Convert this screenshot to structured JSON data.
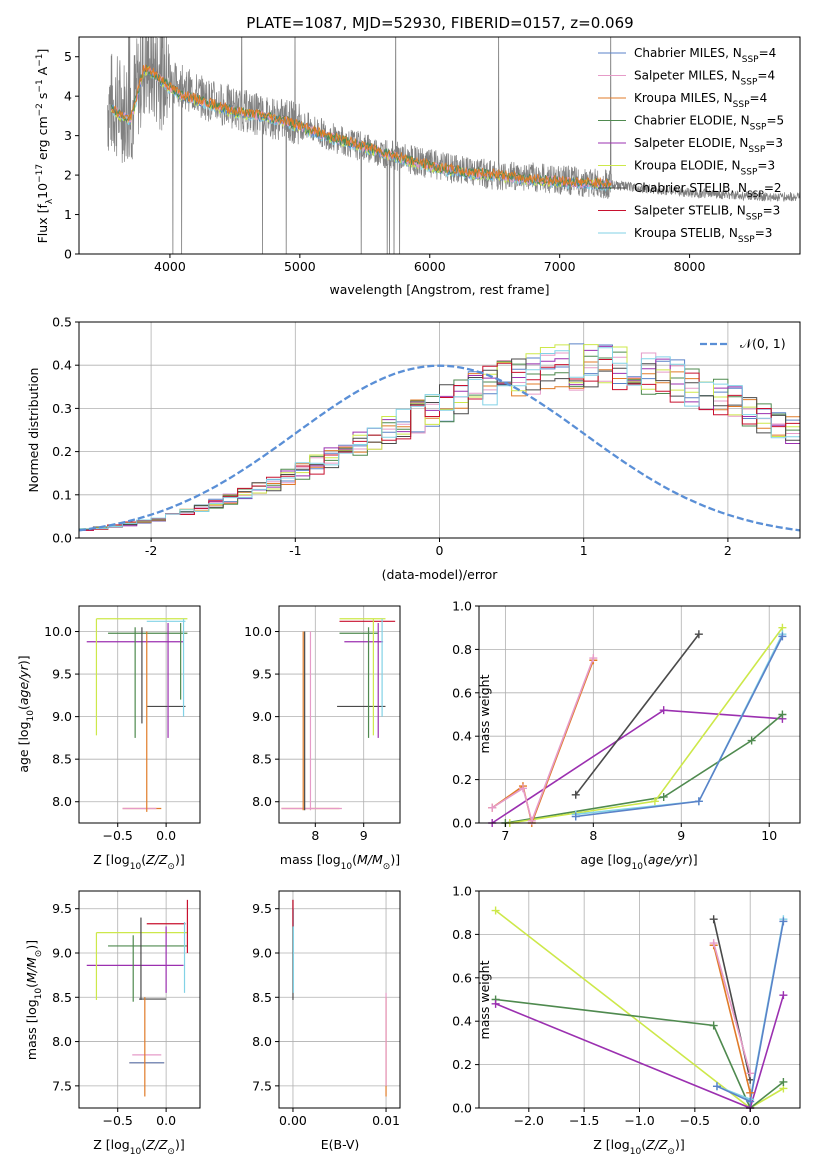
{
  "figure": {
    "title": "PLATE=1087, MJD=52930, FIBERID=0157, z=0.069"
  },
  "colors": {
    "chabrier_miles": "#5a82c8",
    "salpeter_miles": "#e69bc8",
    "kroupa_miles": "#e07b28",
    "chabrier_elodie": "#4f8a4f",
    "salpeter_elodie": "#9b30b0",
    "kroupa_elodie": "#cde84a",
    "chabrier_stelib": "#4a4a4a",
    "salpeter_stelib": "#c8102e",
    "kroupa_stelib": "#82d2e6",
    "data": "#808080",
    "gauss": "#5a8fd6"
  },
  "chart_data": [
    {
      "id": "spectrum",
      "type": "line",
      "title": "PLATE=1087, MJD=52930, FIBERID=0157, z=0.069",
      "xlabel": "wavelength [Angstrom, rest frame]",
      "ylabel": "Flux [f_λ 10^-17 erg cm^-2 s^-1 A^-1]",
      "xlim": [
        3300,
        8850
      ],
      "ylim": [
        0,
        5.5
      ],
      "xticks": [
        4000,
        5000,
        6000,
        7000,
        8000
      ],
      "yticks": [
        0,
        1,
        2,
        3,
        4,
        5
      ],
      "grid": false,
      "legend_position": "right",
      "legend": [
        {
          "key": "chabrier_miles",
          "label": "Chabrier MILES, N",
          "sub": "SSP",
          "suffix": "=4"
        },
        {
          "key": "salpeter_miles",
          "label": "Salpeter MILES, N",
          "sub": "SSP",
          "suffix": "=4"
        },
        {
          "key": "kroupa_miles",
          "label": "Kroupa MILES, N",
          "sub": "SSP",
          "suffix": "=4"
        },
        {
          "key": "chabrier_elodie",
          "label": "Chabrier ELODIE, N",
          "sub": "SSP",
          "suffix": "=5"
        },
        {
          "key": "salpeter_elodie",
          "label": "Salpeter ELODIE, N",
          "sub": "SSP",
          "suffix": "=3"
        },
        {
          "key": "kroupa_elodie",
          "label": "Kroupa ELODIE, N",
          "sub": "SSP",
          "suffix": "=3"
        },
        {
          "key": "chabrier_stelib",
          "label": "Chabrier STELIB, N",
          "sub": "SSP",
          "suffix": "=2"
        },
        {
          "key": "salpeter_stelib",
          "label": "Salpeter STELIB, N",
          "sub": "SSP",
          "suffix": "=3"
        },
        {
          "key": "kroupa_stelib",
          "label": "Kroupa STELIB, N",
          "sub": "SSP",
          "suffix": "=3"
        }
      ],
      "model_continuum": {
        "x": [
          3550,
          3620,
          3700,
          3800,
          3900,
          4000,
          4100,
          4200,
          4300,
          4500,
          4700,
          4900,
          5100,
          5300,
          5500,
          5700,
          5900,
          6100,
          6300,
          6500,
          6700,
          6900,
          7100,
          7300,
          7400
        ],
        "y": [
          3.7,
          3.5,
          3.4,
          4.7,
          4.5,
          4.2,
          4.0,
          3.9,
          3.8,
          3.6,
          3.5,
          3.35,
          3.1,
          2.9,
          2.7,
          2.5,
          2.3,
          2.15,
          2.05,
          2.0,
          1.9,
          1.85,
          1.8,
          1.78,
          1.75
        ]
      },
      "data_continuum": {
        "x": [
          3550,
          3700,
          3800,
          4000,
          4300,
          4600,
          5000,
          5300,
          5600,
          5900,
          6200,
          6500,
          6800,
          7100,
          7400,
          7700,
          8000,
          8300,
          8600,
          8850
        ],
        "y": [
          3.8,
          3.6,
          4.8,
          4.4,
          3.9,
          3.6,
          3.3,
          2.9,
          2.6,
          2.35,
          2.15,
          2.0,
          1.95,
          1.85,
          1.75,
          1.65,
          1.55,
          1.5,
          1.45,
          1.45
        ]
      }
    },
    {
      "id": "residuals",
      "type": "histogram",
      "xlabel": "(data-model)/error",
      "ylabel": "Normed distribution",
      "xlim": [
        -2.5,
        2.5
      ],
      "ylim": [
        0,
        0.5
      ],
      "xticks": [
        -2,
        -1,
        0,
        1,
        2
      ],
      "yticks": [
        0.0,
        0.1,
        0.2,
        0.3,
        0.4,
        0.5
      ],
      "grid": true,
      "legend_position": "top-right",
      "legend_label": "N(0,1)",
      "bin_width": 0.1,
      "bin_start": -2.5,
      "reference_values": [
        0.018,
        0.021,
        0.025,
        0.03,
        0.035,
        0.041,
        0.048,
        0.056,
        0.064,
        0.074,
        0.084,
        0.095,
        0.107,
        0.12,
        0.133,
        0.147,
        0.162,
        0.177,
        0.193,
        0.209,
        0.225,
        0.241,
        0.258,
        0.274,
        0.289,
        0.305,
        0.319,
        0.333,
        0.346,
        0.358,
        0.369,
        0.378,
        0.386,
        0.392,
        0.396,
        0.398,
        0.398,
        0.396,
        0.392,
        0.386,
        0.378,
        0.369,
        0.358,
        0.346,
        0.333,
        0.319,
        0.305,
        0.289,
        0.274,
        0.258,
        0.241
      ]
    },
    {
      "id": "age_vs_Z",
      "type": "scatter",
      "xlabel": "Z [log10(Z/Z_sun)]",
      "ylabel": "age [log10(age/yr)]",
      "xlim": [
        -0.9,
        0.35
      ],
      "ylim": [
        7.75,
        10.3
      ],
      "xticks": [
        -0.5,
        0.0
      ],
      "xticklabels": [
        "−0.5",
        "0.0"
      ],
      "yticks": [
        8.0,
        8.5,
        9.0,
        9.5,
        10.0
      ],
      "grid": true,
      "hlines": [
        {
          "key": "kroupa_elodie",
          "y": 10.15,
          "x1": -0.72,
          "x2": 0.22
        },
        {
          "key": "salpeter_elodie",
          "y": 9.88,
          "x1": -0.82,
          "x2": 0.18
        },
        {
          "key": "chabrier_elodie",
          "y": 9.98,
          "x1": -0.6,
          "x2": 0.22
        },
        {
          "key": "chabrier_stelib",
          "y": 9.12,
          "x1": -0.2,
          "x2": 0.2
        },
        {
          "key": "kroupa_stelib",
          "y": 10.12,
          "x1": -0.2,
          "x2": 0.2
        },
        {
          "key": "kroupa_miles",
          "y": 7.92,
          "x1": -0.45,
          "x2": -0.05
        },
        {
          "key": "salpeter_miles",
          "y": 7.92,
          "x1": -0.45,
          "x2": -0.1
        }
      ],
      "vlines": [
        {
          "key": "kroupa_elodie",
          "x": -0.72,
          "y1": 8.78,
          "y2": 10.15
        },
        {
          "key": "chabrier_elodie",
          "x": -0.32,
          "y1": 8.75,
          "y2": 10.05
        },
        {
          "key": "chabrier_stelib",
          "x": -0.25,
          "y1": 8.92,
          "y2": 10.05
        },
        {
          "key": "kroupa_miles",
          "x": -0.2,
          "y1": 7.88,
          "y2": 10.0
        },
        {
          "key": "salpeter_elodie",
          "x": 0.02,
          "y1": 8.75,
          "y2": 10.1
        },
        {
          "key": "kroupa_stelib",
          "x": 0.18,
          "y1": 9.0,
          "y2": 10.15
        },
        {
          "key": "chabrier_elodie",
          "x": 0.15,
          "y1": 9.2,
          "y2": 10.1
        }
      ]
    },
    {
      "id": "age_vs_mass",
      "type": "scatter",
      "xlabel": "mass [log10(M/M_sun)]",
      "ylabel": "",
      "xlim": [
        7.25,
        9.75
      ],
      "ylim": [
        7.75,
        10.3
      ],
      "xticks": [
        8,
        9
      ],
      "yticks": [
        8.0,
        8.5,
        9.0,
        9.5,
        10.0
      ],
      "grid": true,
      "hlines": [
        {
          "key": "kroupa_elodie",
          "y": 10.15,
          "x1": 8.5,
          "x2": 9.45
        },
        {
          "key": "salpeter_stelib",
          "y": 10.12,
          "x1": 8.5,
          "x2": 9.65
        },
        {
          "key": "salpeter_elodie",
          "y": 9.88,
          "x1": 8.6,
          "x2": 9.4
        },
        {
          "key": "chabrier_elodie",
          "y": 9.98,
          "x1": 8.5,
          "x2": 9.3
        },
        {
          "key": "chabrier_stelib",
          "y": 9.12,
          "x1": 8.45,
          "x2": 9.45
        },
        {
          "key": "kroupa_miles",
          "y": 7.92,
          "x1": 7.3,
          "x2": 8.5
        },
        {
          "key": "salpeter_miles",
          "y": 7.92,
          "x1": 7.3,
          "x2": 8.55
        }
      ],
      "vlines": [
        {
          "key": "kroupa_miles",
          "x": 7.75,
          "y1": 7.9,
          "y2": 10.0
        },
        {
          "key": "chabrier_stelib",
          "x": 7.78,
          "y1": 7.9,
          "y2": 10.0
        },
        {
          "key": "salpeter_miles",
          "x": 7.9,
          "y1": 7.9,
          "y2": 10.0
        },
        {
          "key": "kroupa_elodie",
          "x": 9.2,
          "y1": 8.78,
          "y2": 10.15
        },
        {
          "key": "chabrier_elodie",
          "x": 9.1,
          "y1": 8.75,
          "y2": 10.05
        },
        {
          "key": "salpeter_elodie",
          "x": 9.3,
          "y1": 8.75,
          "y2": 10.1
        },
        {
          "key": "kroupa_stelib",
          "x": 9.38,
          "y1": 9.0,
          "y2": 10.15
        }
      ]
    },
    {
      "id": "massweight_vs_age",
      "type": "line",
      "xlabel": "age [log10(age/yr)]",
      "ylabel": "mass weight",
      "xlim": [
        6.7,
        10.35
      ],
      "ylim": [
        0,
        1.0
      ],
      "xticks": [
        7,
        8,
        9,
        10
      ],
      "yticks": [
        0.0,
        0.2,
        0.4,
        0.6,
        0.8,
        1.0
      ],
      "grid": true,
      "series": [
        {
          "key": "salpeter_elodie",
          "x": [
            6.85,
            8.8,
            10.15
          ],
          "y": [
            0.0,
            0.52,
            0.48
          ]
        },
        {
          "key": "chabrier_elodie",
          "x": [
            7.0,
            8.8,
            9.8,
            10.15
          ],
          "y": [
            0.0,
            0.12,
            0.38,
            0.5
          ]
        },
        {
          "key": "kroupa_elodie",
          "x": [
            7.05,
            8.7,
            10.15
          ],
          "y": [
            0.0,
            0.1,
            0.9
          ]
        },
        {
          "key": "chabrier_stelib",
          "x": [
            7.8,
            9.2
          ],
          "y": [
            0.13,
            0.87
          ]
        },
        {
          "key": "kroupa_stelib",
          "x": [
            7.8,
            9.2,
            10.15
          ],
          "y": [
            0.04,
            0.1,
            0.87
          ]
        },
        {
          "key": "chabrier_miles",
          "x": [
            7.8,
            9.2,
            10.15
          ],
          "y": [
            0.03,
            0.1,
            0.86
          ]
        },
        {
          "key": "kroupa_miles",
          "x": [
            6.85,
            7.2,
            7.3,
            8.0
          ],
          "y": [
            0.07,
            0.17,
            0.0,
            0.75
          ]
        },
        {
          "key": "salpeter_miles",
          "x": [
            6.85,
            7.2,
            7.3,
            8.0
          ],
          "y": [
            0.07,
            0.16,
            0.01,
            0.76
          ]
        }
      ]
    },
    {
      "id": "mass_vs_Z",
      "type": "scatter",
      "xlabel": "Z [log10(Z/Z_sun)]",
      "ylabel": "mass [log10(M/M_sun)]",
      "xlim": [
        -0.9,
        0.35
      ],
      "ylim": [
        7.25,
        9.7
      ],
      "xticks": [
        -0.5,
        0.0
      ],
      "xticklabels": [
        "−0.5",
        "0.0"
      ],
      "yticks": [
        7.5,
        8.0,
        8.5,
        9.0,
        9.5
      ],
      "grid": true,
      "hlines": [
        {
          "key": "kroupa_elodie",
          "y": 9.23,
          "x1": -0.72,
          "x2": 0.22
        },
        {
          "key": "chabrier_elodie",
          "y": 9.08,
          "x1": -0.6,
          "x2": 0.22
        },
        {
          "key": "salpeter_elodie",
          "y": 8.86,
          "x1": -0.82,
          "x2": 0.18
        },
        {
          "key": "salpeter_stelib",
          "y": 9.33,
          "x1": -0.2,
          "x2": 0.2
        },
        {
          "key": "chabrier_stelib",
          "y": 8.48,
          "x1": -0.28,
          "x2": 0.0
        },
        {
          "key": "salpeter_miles",
          "y": 7.85,
          "x1": -0.35,
          "x2": -0.05
        },
        {
          "key": "kroupa_miles",
          "y": 7.76,
          "x1": -0.38,
          "x2": -0.02
        },
        {
          "key": "chabrier_miles",
          "y": 7.76,
          "x1": -0.38,
          "x2": -0.02
        }
      ],
      "vlines": [
        {
          "key": "kroupa_elodie",
          "x": -0.72,
          "y1": 8.47,
          "y2": 9.23
        },
        {
          "key": "chabrier_elodie",
          "x": -0.34,
          "y1": 8.45,
          "y2": 9.2
        },
        {
          "key": "chabrier_stelib",
          "x": -0.26,
          "y1": 8.47,
          "y2": 9.4
        },
        {
          "key": "kroupa_miles",
          "x": -0.22,
          "y1": 7.38,
          "y2": 8.5
        },
        {
          "key": "salpeter_elodie",
          "x": 0.0,
          "y1": 8.55,
          "y2": 9.3
        },
        {
          "key": "salpeter_stelib",
          "x": 0.22,
          "y1": 9.0,
          "y2": 9.6
        },
        {
          "key": "kroupa_stelib",
          "x": 0.19,
          "y1": 8.55,
          "y2": 9.35
        }
      ]
    },
    {
      "id": "mass_vs_ebv",
      "type": "scatter",
      "xlabel": "E(B-V)",
      "ylabel": "",
      "xlim": [
        -0.0015,
        0.0115
      ],
      "ylim": [
        7.25,
        9.7
      ],
      "xticks": [
        0.0,
        0.01
      ],
      "xticklabels": [
        "0.00",
        "0.01"
      ],
      "yticks": [
        7.5,
        8.0,
        8.5,
        9.0,
        9.5
      ],
      "grid": true,
      "vlines": [
        {
          "key": "chabrier_stelib",
          "x": 0.0,
          "y1": 8.47,
          "y2": 9.6
        },
        {
          "key": "kroupa_stelib",
          "x": 5e-05,
          "y1": 8.55,
          "y2": 9.5
        },
        {
          "key": "salpeter_stelib",
          "x": 0.0,
          "y1": 9.3,
          "y2": 9.6
        },
        {
          "key": "kroupa_miles",
          "x": 0.01,
          "y1": 7.38,
          "y2": 8.5
        },
        {
          "key": "salpeter_miles",
          "x": 0.01,
          "y1": 7.5,
          "y2": 8.55
        }
      ]
    },
    {
      "id": "massweight_vs_Z",
      "type": "line",
      "xlabel": "Z [log10(Z/Z_sun)]",
      "ylabel": "mass weight",
      "xlim": [
        -2.45,
        0.45
      ],
      "ylim": [
        0,
        1.0
      ],
      "xticks": [
        -2.0,
        -1.5,
        -1.0,
        -0.5,
        0.0
      ],
      "xticklabels": [
        "−2.0",
        "−1.5",
        "−1.0",
        "−0.5",
        "0.0"
      ],
      "yticks": [
        0.0,
        0.2,
        0.4,
        0.6,
        0.8,
        1.0
      ],
      "grid": true,
      "series": [
        {
          "key": "kroupa_elodie",
          "x": [
            -2.3,
            0.0,
            0.3
          ],
          "y": [
            0.91,
            0.0,
            0.09
          ]
        },
        {
          "key": "chabrier_elodie",
          "x": [
            -2.3,
            -0.33,
            0.0,
            0.3
          ],
          "y": [
            0.5,
            0.38,
            0.0,
            0.12
          ]
        },
        {
          "key": "salpeter_elodie",
          "x": [
            -2.3,
            0.0,
            0.3
          ],
          "y": [
            0.48,
            0.0,
            0.52
          ]
        },
        {
          "key": "chabrier_stelib",
          "x": [
            -0.33,
            0.0
          ],
          "y": [
            0.87,
            0.13
          ]
        },
        {
          "key": "kroupa_stelib",
          "x": [
            -0.3,
            0.0,
            0.3
          ],
          "y": [
            0.1,
            0.04,
            0.87
          ]
        },
        {
          "key": "chabrier_miles",
          "x": [
            -0.3,
            0.0,
            0.3
          ],
          "y": [
            0.1,
            0.03,
            0.86
          ]
        },
        {
          "key": "kroupa_miles",
          "x": [
            -0.33,
            0.0
          ],
          "y": [
            0.75,
            0.07
          ]
        },
        {
          "key": "salpeter_miles",
          "x": [
            -0.33,
            0.0
          ],
          "y": [
            0.76,
            0.16
          ]
        }
      ]
    }
  ]
}
